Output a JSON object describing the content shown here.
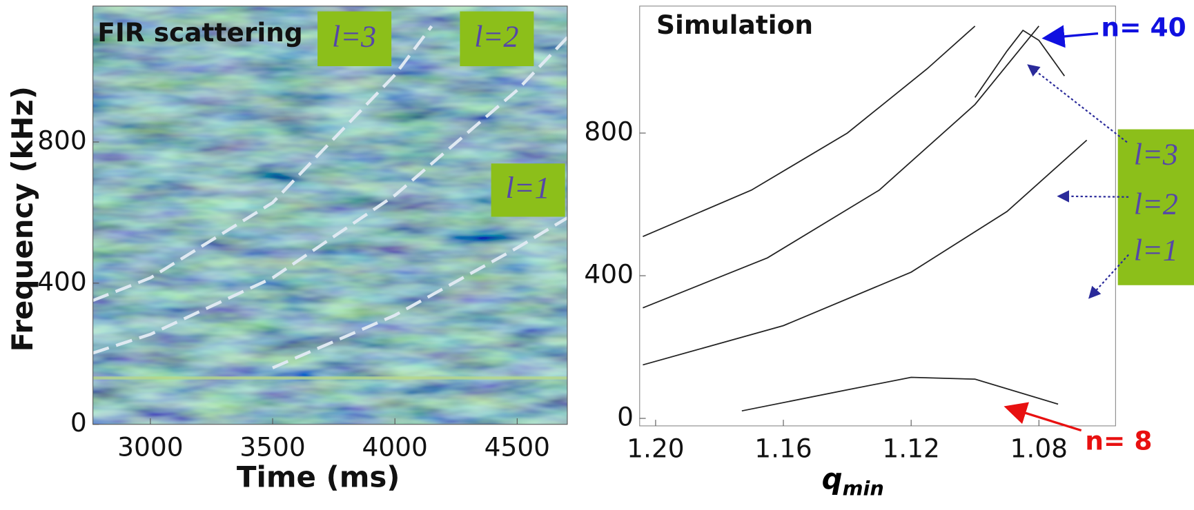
{
  "chart_data": [
    {
      "type": "spectrogram",
      "title": "FIR scattering",
      "xlabel": "Time (ms)",
      "ylabel": "Frequency (kHz)",
      "xlim": [
        2765,
        4705
      ],
      "ylim": [
        0,
        1185
      ],
      "xticks": [
        3000,
        3500,
        4000,
        4500
      ],
      "yticks": [
        0,
        400,
        800
      ],
      "dashed": true,
      "series": [
        {
          "name": "l=3",
          "color": "#dfe9f2",
          "x": [
            2765,
            3000,
            3500,
            4000,
            4150
          ],
          "values": [
            351,
            415,
            628,
            990,
            1128
          ]
        },
        {
          "name": "l=2",
          "color": "#dfe9f2",
          "x": [
            2765,
            3000,
            3500,
            4000,
            4500,
            4705
          ],
          "values": [
            202,
            255,
            415,
            649,
            947,
            1096
          ]
        },
        {
          "name": "l=1",
          "color": "#dfe9f2",
          "x": [
            3500,
            4000,
            4500,
            4705
          ],
          "values": [
            160,
            309,
            500,
            585
          ]
        }
      ]
    },
    {
      "type": "line",
      "title": "Simulation",
      "xlabel": "q",
      "xlabel_sub": "min",
      "xlim": [
        1.205,
        1.056
      ],
      "ylim": [
        -21,
        1156
      ],
      "xticks": [
        {
          "value": 1.2,
          "label": "1.20"
        },
        1.16,
        1.12,
        1.08
      ],
      "yticks": [
        0,
        400,
        800
      ],
      "series": [
        {
          "name": "l=3",
          "color": "#222222",
          "x": [
            1.204,
            1.17,
            1.14,
            1.115,
            1.1
          ],
          "values": [
            510,
            640,
            800,
            980,
            1100
          ]
        },
        {
          "name": "l=2",
          "color": "#222222",
          "x": [
            1.204,
            1.165,
            1.13,
            1.1,
            1.08
          ],
          "values": [
            310,
            450,
            640,
            880,
            1100
          ]
        },
        {
          "name": "l=1",
          "color": "#222222",
          "x": [
            1.204,
            1.16,
            1.12,
            1.09,
            1.065
          ],
          "values": [
            150,
            260,
            410,
            580,
            780
          ]
        },
        {
          "name": "n= 40",
          "color": "#222222",
          "x": [
            1.1,
            1.09,
            1.085,
            1.08,
            1.072
          ],
          "values": [
            900,
            1030,
            1088,
            1060,
            960
          ]
        },
        {
          "name": "n= 8",
          "color": "#222222",
          "x": [
            1.173,
            1.14,
            1.12,
            1.1,
            1.074
          ],
          "values": [
            21,
            80,
            115,
            110,
            40
          ]
        }
      ]
    }
  ]
}
